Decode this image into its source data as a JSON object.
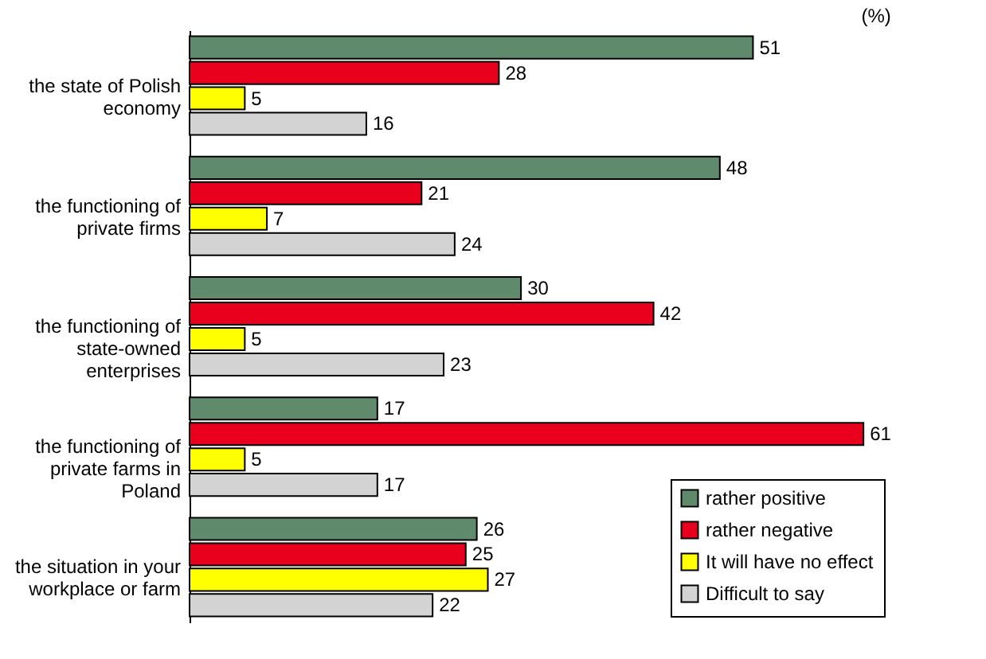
{
  "chart_data": {
    "type": "bar",
    "orientation": "horizontal",
    "annotations": [
      "(%)"
    ],
    "categories": [
      "the state of Polish economy",
      "the functioning of private firms",
      "the functioning of state-owned enterprises",
      "the functioning of private farms in Poland",
      "the situation in your workplace or farm"
    ],
    "series": [
      {
        "name": "rather positive",
        "color": "#5f8a6b",
        "values": [
          51,
          48,
          30,
          17,
          26
        ]
      },
      {
        "name": "rather negative",
        "color": "#e8001c",
        "values": [
          28,
          21,
          42,
          61,
          25
        ]
      },
      {
        "name": "It will have no effect",
        "color": "#ffff00",
        "values": [
          5,
          7,
          5,
          5,
          27
        ]
      },
      {
        "name": "Difficult to say",
        "color": "#d3d3d3",
        "values": [
          16,
          24,
          23,
          17,
          22
        ]
      }
    ],
    "data_labels": true,
    "grid": false,
    "legend": "bottom right"
  }
}
